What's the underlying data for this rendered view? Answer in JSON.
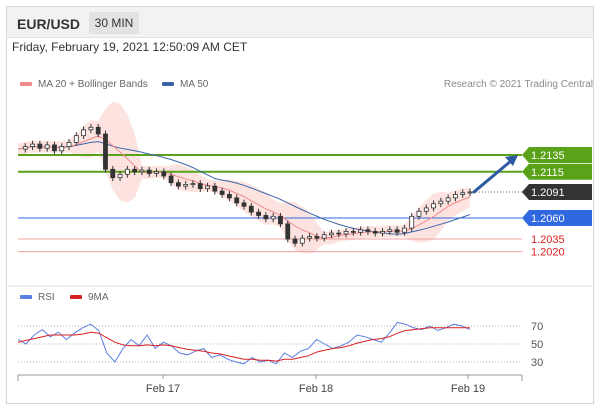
{
  "header": {
    "pair": "EUR/USD",
    "timeframe": "30 MIN"
  },
  "timestamp": "Friday, February 19, 2021 12:50:09 AM CET",
  "credit": "Research © 2021 Trading Central",
  "legend": [
    {
      "label": "MA 20 + Bollinger Bands",
      "color": "#f08a8a"
    },
    {
      "label": "MA 50",
      "color": "#3a66a8"
    }
  ],
  "rsi_legend": [
    {
      "label": "RSI",
      "color": "#5b7fe0"
    },
    {
      "label": "9MA",
      "color": "#d92020"
    }
  ],
  "chart_data": [
    {
      "type": "candlestick",
      "title": "EUR/USD 30 MIN",
      "x_labels": [
        "Feb 17",
        "Feb 18",
        "Feb 19"
      ],
      "price_levels": [
        {
          "label": "1.2135",
          "value": 1.2135,
          "style": "resistance",
          "color": "#5aa21a"
        },
        {
          "label": "1.2115",
          "value": 1.2115,
          "style": "resistance",
          "color": "#5aa21a"
        },
        {
          "label": "1.2091",
          "value": 1.2091,
          "style": "last-price",
          "color": "#333333"
        },
        {
          "label": "1.2060",
          "value": 1.206,
          "style": "pivot",
          "color": "#2f68e0"
        },
        {
          "label": "1.2035",
          "value": 1.2035,
          "style": "support",
          "color": "#e02020"
        },
        {
          "label": "1.2020",
          "value": 1.202,
          "style": "support",
          "color": "#e02020"
        }
      ],
      "close_path": [
        1.2142,
        1.2145,
        1.2148,
        1.2143,
        1.2147,
        1.214,
        1.2145,
        1.215,
        1.2158,
        1.2165,
        1.2168,
        1.216,
        1.2118,
        1.2108,
        1.2112,
        1.2118,
        1.2115,
        1.2117,
        1.2113,
        1.2115,
        1.211,
        1.2102,
        1.2098,
        1.21,
        1.2101,
        1.2095,
        1.2098,
        1.2092,
        1.2088,
        1.2084,
        1.2078,
        1.2074,
        1.2067,
        1.2063,
        1.2059,
        1.2062,
        1.2053,
        1.2035,
        1.203,
        1.2036,
        1.2038,
        1.2036,
        1.204,
        1.2042,
        1.2041,
        1.2044,
        1.2043,
        1.2046,
        1.2044,
        1.2042,
        1.2044,
        1.2046,
        1.2043,
        1.2048,
        1.2062,
        1.2068,
        1.2072,
        1.2077,
        1.208,
        1.2084,
        1.2088,
        1.209,
        1.2091
      ],
      "trend_arrow": {
        "from_price": 1.2091,
        "to_price": 1.2135
      },
      "indicators": [
        "MA 20 + Bollinger Bands",
        "MA 50"
      ]
    },
    {
      "type": "line",
      "title": "RSI",
      "yticks": [
        70,
        50,
        30
      ],
      "series": [
        {
          "name": "RSI",
          "values": [
            55,
            50,
            60,
            66,
            58,
            63,
            55,
            62,
            68,
            72,
            65,
            40,
            30,
            45,
            55,
            48,
            60,
            45,
            52,
            48,
            40,
            38,
            42,
            45,
            35,
            38,
            33,
            30,
            28,
            35,
            30,
            32,
            28,
            40,
            35,
            42,
            45,
            55,
            50,
            45,
            48,
            52,
            60,
            58,
            55,
            52,
            62,
            74,
            72,
            68,
            66,
            70,
            65,
            68,
            72,
            70,
            66
          ]
        },
        {
          "name": "9MA",
          "values": [
            52,
            54,
            56,
            58,
            60,
            60,
            60,
            60,
            61,
            63,
            62,
            57,
            52,
            49,
            48,
            48,
            49,
            48,
            49,
            48,
            46,
            44,
            43,
            42,
            40,
            39,
            37,
            35,
            33,
            33,
            32,
            32,
            31,
            33,
            33,
            35,
            37,
            41,
            43,
            45,
            46,
            48,
            51,
            53,
            55,
            56,
            58,
            62,
            65,
            66,
            67,
            68,
            68,
            68,
            68,
            68,
            68
          ]
        }
      ]
    }
  ]
}
